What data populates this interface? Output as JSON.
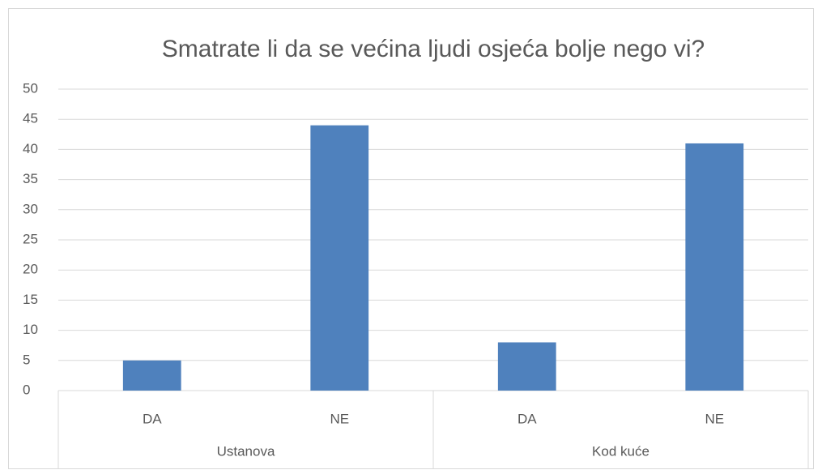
{
  "chart_data": {
    "type": "bar",
    "title": "Smatrate li da se većina ljudi osjeća bolje nego vi?",
    "categories": [
      "DA",
      "NE",
      "DA",
      "NE"
    ],
    "groups": [
      "Ustanova",
      "Kod kuće"
    ],
    "values": [
      5,
      44,
      8,
      41
    ],
    "color": "#4f81bd",
    "ylim": [
      0,
      50
    ],
    "yticks": [
      0,
      5,
      10,
      15,
      20,
      25,
      30,
      35,
      40,
      45,
      50
    ],
    "grid": true
  }
}
